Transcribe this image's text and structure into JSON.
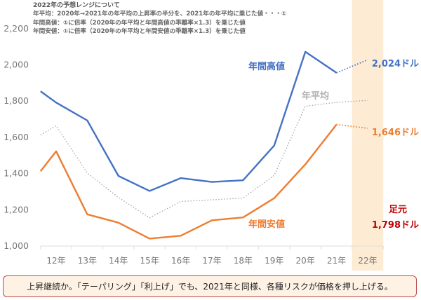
{
  "notes": {
    "title": "2022年の予想レンジについて",
    "lines": [
      "年平均：2020年→2021年の年平均の上昇率の半分を、2021年の年平均に乗じた値・・・①",
      "年間高値：①に倍率（2020年の年平均と年間高値の乖離率×1.3）を乗じた値",
      "年間安値：①に倍率（2020年の年平均と年間安値の乖離率×1.3）を乗じた値"
    ]
  },
  "chart_data": {
    "type": "line",
    "ylim": [
      1000,
      2200
    ],
    "yticks": [
      1000,
      1200,
      1400,
      1600,
      1800,
      2000,
      2200
    ],
    "ytick_labels": [
      "1,000",
      "1,200",
      "1,400",
      "1,600",
      "1,800",
      "2,000",
      "2,200"
    ],
    "categories": [
      "12年",
      "13年",
      "14年",
      "15年",
      "16年",
      "17年",
      "18年",
      "19年",
      "20年",
      "21年",
      "22年"
    ],
    "x_years": [
      11.5,
      12,
      13,
      14,
      15,
      16,
      17,
      18,
      19,
      20,
      21
    ],
    "highlight_category": "22年",
    "highlight_color": "#fdebd3",
    "grid": false,
    "series": [
      {
        "name": "年間高値",
        "color": "#4472c4",
        "style": "solid",
        "values": [
          1850,
          1788,
          1689,
          1383,
          1300,
          1371,
          1350,
          1359,
          1551,
          2068,
          1952
        ],
        "forecast": 2024,
        "forecast_label": "2,024ドル"
      },
      {
        "name": "年平均",
        "color": "#a6a6a6",
        "style": "dotted",
        "values": [
          1609,
          1660,
          1399,
          1264,
          1152,
          1242,
          1251,
          1261,
          1386,
          1768,
          1789
        ],
        "forecast": 1800
      },
      {
        "name": "年間安値",
        "color": "#ed7d31",
        "style": "solid",
        "values": [
          1409,
          1519,
          1171,
          1125,
          1037,
          1053,
          1138,
          1154,
          1260,
          1447,
          1667
        ],
        "forecast": 1646,
        "forecast_label": "1,646ドル"
      }
    ],
    "current": {
      "label": "足元",
      "value_label": "1,798ドル",
      "color": "#c00000"
    }
  },
  "footer": {
    "text": "上昇継続か。「テーパリング」「利上げ」でも、2021年と同様、各種リスクが価格を押し上げる。",
    "border_color": "#b84a45"
  }
}
